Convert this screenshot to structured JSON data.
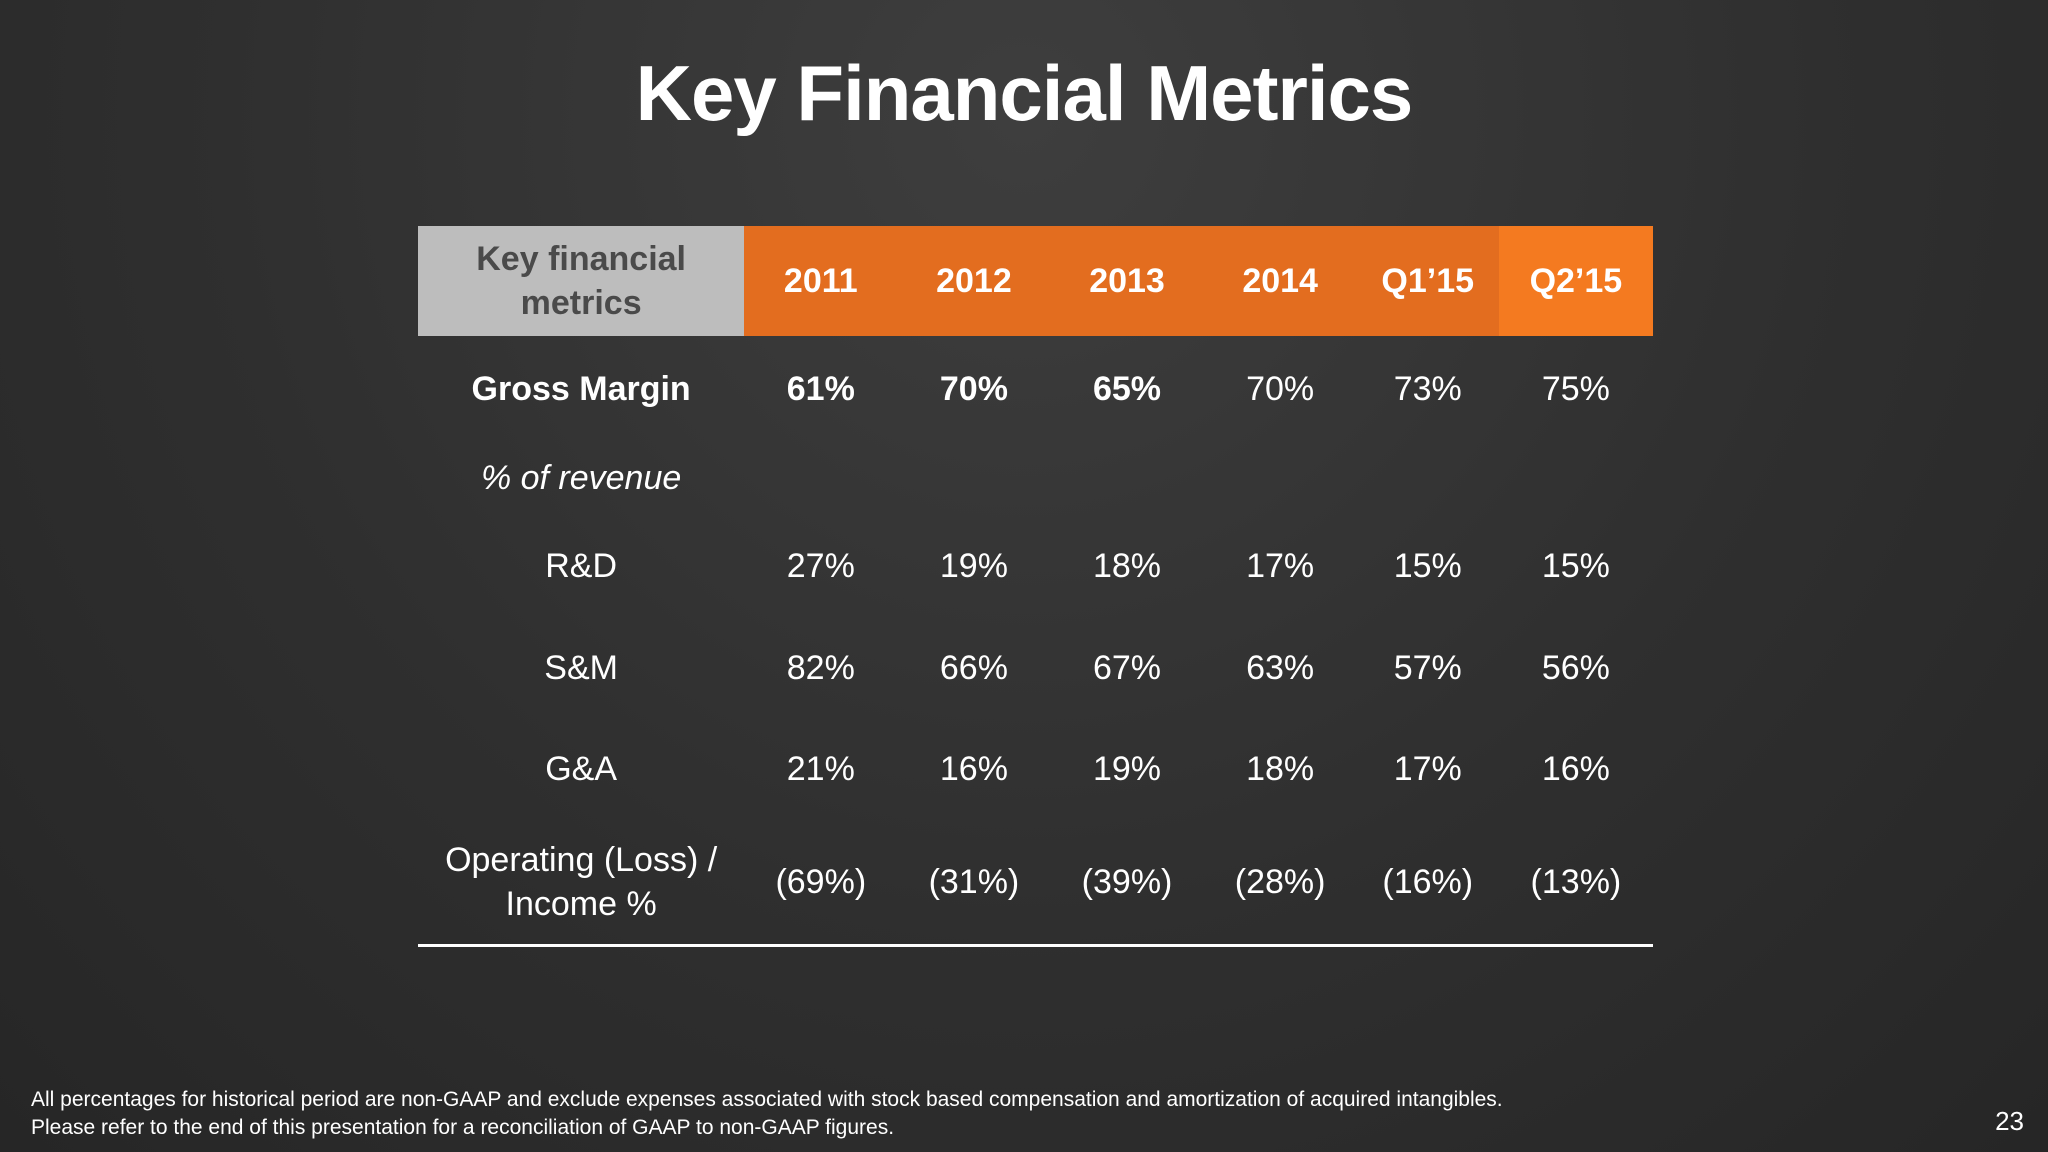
{
  "slide": {
    "title": "Key Financial Metrics",
    "page_number": "23",
    "footnote_line1": "All percentages for historical period are non-GAAP and exclude expenses associated with stock based compensation and amortization of acquired intangibles.",
    "footnote_line2": "Please refer to the end of this presentation for a reconciliation of GAAP to non-GAAP figures."
  },
  "colors": {
    "header_label_bg": "#bdbdbd",
    "header_year_bg": "#e36d1f",
    "header_last_bg": "#f47a20",
    "background": "#2f2f2f"
  },
  "table": {
    "header": {
      "label": "Key financial metrics",
      "periods": [
        "2011",
        "2012",
        "2013",
        "2014",
        "Q1’15",
        "Q2’15"
      ]
    },
    "gross_margin": {
      "label": "Gross Margin",
      "values": [
        "61%",
        "70%",
        "65%",
        "70%",
        "73%",
        "75%"
      ]
    },
    "pct_of_revenue": {
      "label": "% of revenue"
    },
    "rd": {
      "label": "R&D",
      "values": [
        "27%",
        "19%",
        "18%",
        "17%",
        "15%",
        "15%"
      ]
    },
    "sm": {
      "label": "S&M",
      "values": [
        "82%",
        "66%",
        "67%",
        "63%",
        "57%",
        "56%"
      ]
    },
    "ga": {
      "label": "G&A",
      "values": [
        "21%",
        "16%",
        "19%",
        "18%",
        "17%",
        "16%"
      ]
    },
    "operating": {
      "label_line1": "Operating (Loss) /",
      "label_line2": "Income %",
      "values": [
        "(69%)",
        "(31%)",
        "(39%)",
        "(28%)",
        "(16%)",
        "(13%)"
      ]
    }
  }
}
